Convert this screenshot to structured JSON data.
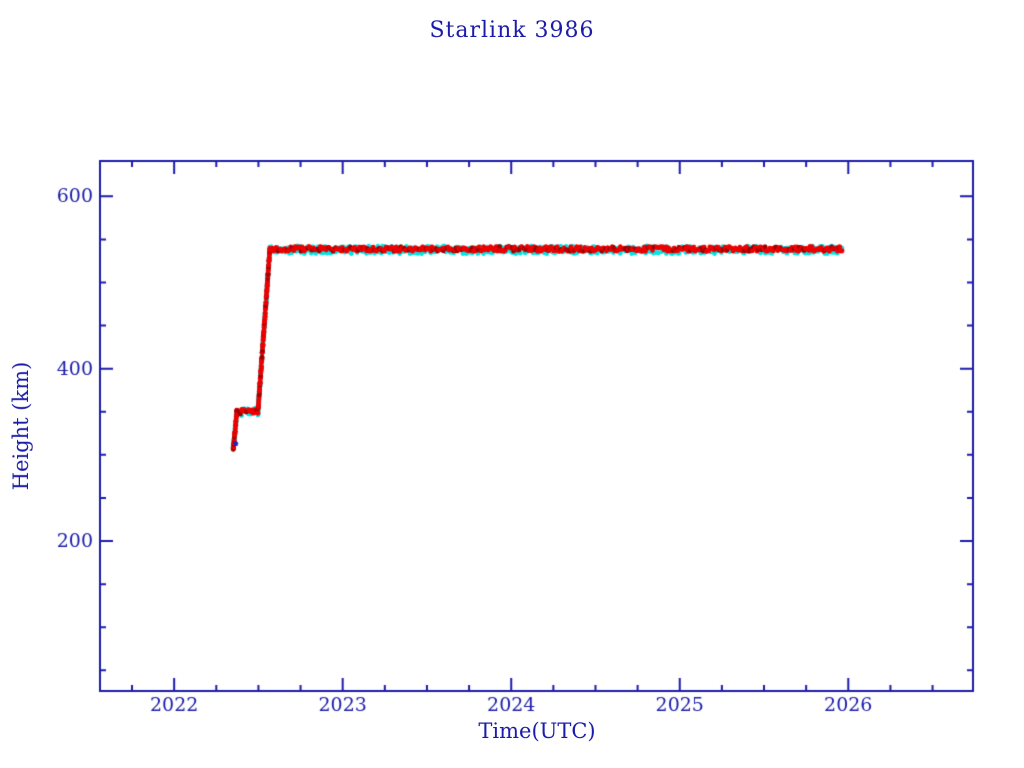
{
  "chart_data": {
    "type": "scatter",
    "title": "Starlink 3986",
    "xlabel": "Time(UTC)",
    "ylabel": "Height (km)",
    "xlim": [
      2021.56,
      2026.74
    ],
    "ylim": [
      26,
      641
    ],
    "x_major_ticks": [
      2022,
      2023,
      2024,
      2025,
      2026
    ],
    "x_minor_step": 0.25,
    "y_major_ticks": [
      200,
      400,
      600
    ],
    "y_minor_step": 50,
    "grid": false,
    "legend": null,
    "axis_color": "#1c1caa",
    "background": "#ffffff",
    "tick_label_color": "#1c1caa",
    "series": [
      {
        "name": "height-secondary",
        "marker": "asterisk",
        "color": "#00e6e6",
        "jitter_km": 4.5,
        "path": [
          [
            2022.35,
            306
          ],
          [
            2022.372,
            349
          ],
          [
            2022.372,
            350
          ],
          [
            2022.497,
            350
          ],
          [
            2022.568,
            538
          ],
          [
            2025.963,
            538
          ]
        ]
      },
      {
        "name": "height-primary",
        "marker": "asterisk",
        "color": "#ee0000",
        "color_dark": "#a00000",
        "dark_fraction": 0.22,
        "jitter_km": 2.8,
        "path": [
          [
            2022.35,
            306
          ],
          [
            2022.372,
            349
          ],
          [
            2022.372,
            350
          ],
          [
            2022.497,
            350
          ],
          [
            2022.568,
            539
          ],
          [
            2025.963,
            539
          ]
        ]
      }
    ],
    "outlier_point": {
      "x": 2022.366,
      "y": 313,
      "color": "#2222c2"
    }
  }
}
